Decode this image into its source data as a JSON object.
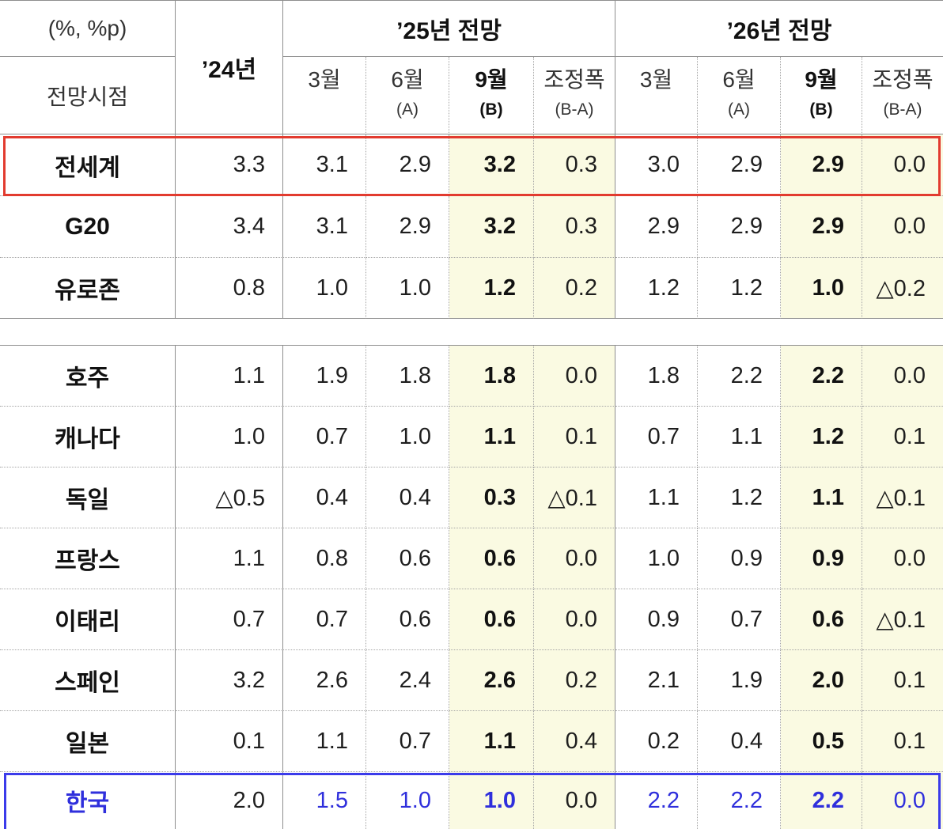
{
  "chart_data": {
    "type": "table",
    "header": {
      "unit": "(%, %p)",
      "row_heading": "전망시점",
      "actual_year": "’24년",
      "groups": [
        {
          "title": "’25년 전망",
          "columns": [
            {
              "label": "3월"
            },
            {
              "label": "6월",
              "sub": "(A)"
            },
            {
              "label": "9월",
              "sub": "(B)"
            },
            {
              "label": "조정폭",
              "sub": "(B-A)"
            }
          ]
        },
        {
          "title": "’26년 전망",
          "columns": [
            {
              "label": "3월"
            },
            {
              "label": "6월",
              "sub": "(A)"
            },
            {
              "label": "9월",
              "sub": "(B)"
            },
            {
              "label": "조정폭",
              "sub": "(B-A)"
            }
          ]
        }
      ]
    },
    "row_groups": [
      [
        {
          "label": "전세계",
          "values": [
            "3.3",
            "3.1",
            "2.9",
            "3.2",
            "0.3",
            "3.0",
            "2.9",
            "2.9",
            "0.0"
          ],
          "box_color": "#e23b2f"
        },
        {
          "label": "G20",
          "values": [
            "3.4",
            "3.1",
            "2.9",
            "3.2",
            "0.3",
            "2.9",
            "2.9",
            "2.9",
            "0.0"
          ]
        },
        {
          "label": "유로존",
          "values": [
            "0.8",
            "1.0",
            "1.0",
            "1.2",
            "0.2",
            "1.2",
            "1.2",
            "1.0",
            "△0.2"
          ]
        }
      ],
      [
        {
          "label": "호주",
          "values": [
            "1.1",
            "1.9",
            "1.8",
            "1.8",
            "0.0",
            "1.8",
            "2.2",
            "2.2",
            "0.0"
          ]
        },
        {
          "label": "캐나다",
          "values": [
            "1.0",
            "0.7",
            "1.0",
            "1.1",
            "0.1",
            "0.7",
            "1.1",
            "1.2",
            "0.1"
          ]
        },
        {
          "label": "독일",
          "values": [
            "△0.5",
            "0.4",
            "0.4",
            "0.3",
            "△0.1",
            "1.1",
            "1.2",
            "1.1",
            "△0.1"
          ]
        },
        {
          "label": "프랑스",
          "values": [
            "1.1",
            "0.8",
            "0.6",
            "0.6",
            "0.0",
            "1.0",
            "0.9",
            "0.9",
            "0.0"
          ]
        },
        {
          "label": "이태리",
          "values": [
            "0.7",
            "0.7",
            "0.6",
            "0.6",
            "0.0",
            "0.9",
            "0.7",
            "0.6",
            "△0.1"
          ]
        },
        {
          "label": "스페인",
          "values": [
            "3.2",
            "2.6",
            "2.4",
            "2.6",
            "0.2",
            "2.1",
            "1.9",
            "2.0",
            "0.1"
          ]
        },
        {
          "label": "일본",
          "values": [
            "0.1",
            "1.1",
            "0.7",
            "1.1",
            "0.4",
            "0.2",
            "0.4",
            "0.5",
            "0.1"
          ]
        },
        {
          "label": "한국",
          "values": [
            "2.0",
            "1.5",
            "1.0",
            "1.0",
            "0.0",
            "2.2",
            "2.2",
            "2.2",
            "0.0"
          ],
          "box_color": "#3b3bea",
          "label_color": "#2f2fdc",
          "value_colors": [
            "#1e1e1e",
            "#2f2fdc",
            "#2f2fdc",
            "#2f2fdc",
            "#1e1e1e",
            "#2f2fdc",
            "#2f2fdc",
            "#2f2fdc",
            "#2f2fdc"
          ]
        }
      ]
    ]
  },
  "colors": {
    "highlight_column_bg": "#fafae2",
    "grid_solid": "#8e8e8e",
    "grid_dotted": "#a6a6a6",
    "text": "#1e1e1e",
    "header_text": "#333333"
  }
}
